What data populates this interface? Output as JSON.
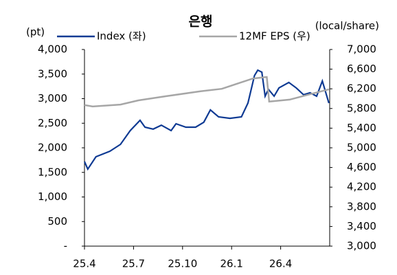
{
  "chart_data": {
    "type": "line",
    "title": "은행",
    "y_label": "(pt)",
    "y2_label": "(local/share)",
    "xlim": [
      0,
      15
    ],
    "xticks": [
      {
        "value": 0,
        "label": "25.4"
      },
      {
        "value": 3,
        "label": "25.7"
      },
      {
        "value": 6,
        "label": "25.10"
      },
      {
        "value": 9,
        "label": "26.1"
      },
      {
        "value": 12,
        "label": "26.4"
      }
    ],
    "ylim": [
      0,
      4000
    ],
    "yticks": [
      {
        "value": 0,
        "label": "-"
      },
      500,
      {
        "value": 1000,
        "label": "1,000"
      },
      {
        "value": 1500,
        "label": "1,500"
      },
      {
        "value": 2000,
        "label": "2,000"
      },
      {
        "value": 2500,
        "label": "2,500"
      },
      {
        "value": 3000,
        "label": "3,000"
      },
      {
        "value": 3500,
        "label": "3,500"
      },
      {
        "value": 4000,
        "label": "4,000"
      }
    ],
    "y2lim": [
      3000,
      7000
    ],
    "y2ticks": [
      {
        "value": 3000,
        "label": "3,000"
      },
      {
        "value": 3400,
        "label": "3,400"
      },
      {
        "value": 3800,
        "label": "3,800"
      },
      {
        "value": 4200,
        "label": "4,200"
      },
      {
        "value": 4600,
        "label": "4,600"
      },
      {
        "value": 5000,
        "label": "5,000"
      },
      {
        "value": 5400,
        "label": "5,400"
      },
      {
        "value": 5800,
        "label": "5,800"
      },
      {
        "value": 6200,
        "label": "6,200"
      },
      {
        "value": 6600,
        "label": "6,600"
      },
      {
        "value": 7000,
        "label": "7,000"
      }
    ],
    "legend": "top",
    "series": [
      {
        "name": "Index (좌)",
        "color": "#0e3a93",
        "axis": "y",
        "x": [
          0,
          0.2,
          0.7,
          1.55,
          2.2,
          2.8,
          3.4,
          3.7,
          4.2,
          4.7,
          5.3,
          5.6,
          6.2,
          6.8,
          7.3,
          7.7,
          8.2,
          8.9,
          9.6,
          10.0,
          10.4,
          10.6,
          10.85,
          11.05,
          11.25,
          11.6,
          11.9,
          12.5,
          12.95,
          13.4,
          13.8,
          14.2,
          14.55,
          14.7,
          14.95
        ],
        "values": [
          1720,
          1566,
          1818,
          1930,
          2070,
          2350,
          2560,
          2420,
          2380,
          2460,
          2350,
          2490,
          2420,
          2420,
          2520,
          2770,
          2630,
          2600,
          2630,
          2910,
          3470,
          3580,
          3540,
          3050,
          3190,
          3050,
          3220,
          3330,
          3220,
          3080,
          3120,
          3050,
          3360,
          3190,
          2910
        ]
      },
      {
        "name": "12MF EPS (우)",
        "color": "#a6a6a6",
        "axis": "y2",
        "x": [
          0,
          0.5,
          2.2,
          3.3,
          5.0,
          7.1,
          8.4,
          9.3,
          10.3,
          11.15,
          11.3,
          12.55,
          13.8,
          14.95
        ],
        "values": [
          5870,
          5840,
          5880,
          5965,
          6050,
          6150,
          6200,
          6300,
          6410,
          6440,
          5940,
          5980,
          6090,
          6190
        ]
      }
    ]
  }
}
